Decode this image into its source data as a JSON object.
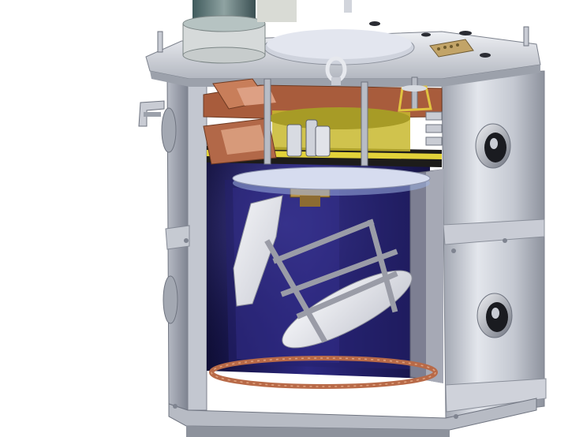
{
  "image": {
    "subject": "cryostat-cutaway-render",
    "background_color": "#ffffff"
  },
  "palette": {
    "shell_light": "#d9dce3",
    "shell_mid": "#b9bdc7",
    "shell_dark": "#8f94a0",
    "interior_navy": "#1c1a55",
    "interior_blue": "#2e2a86",
    "copper": "#b86a48",
    "gold": "#e2d23a",
    "mirror_white": "#e6e7ec",
    "strut_grey": "#a8aab4"
  }
}
